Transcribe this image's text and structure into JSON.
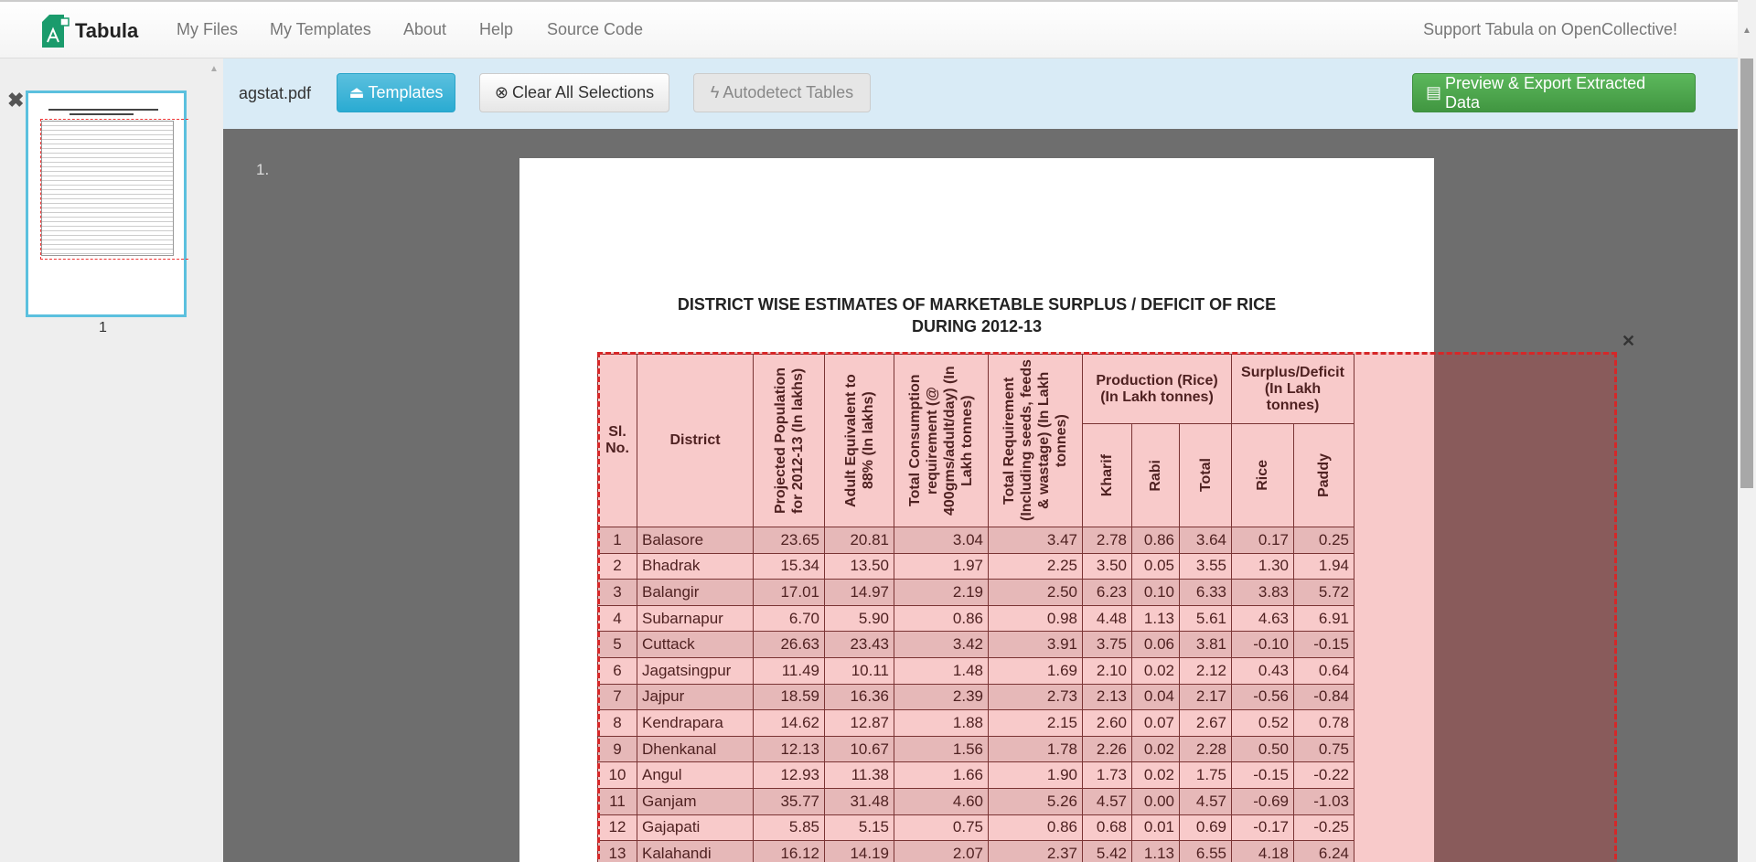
{
  "nav": {
    "brand": "Tabula",
    "links": [
      "My Files",
      "My Templates",
      "About",
      "Help",
      "Source Code"
    ],
    "support": "Support Tabula on OpenCollective!"
  },
  "sidebar": {
    "thumb_page": "1"
  },
  "toolbar": {
    "filename": "agstat.pdf",
    "templates": "Templates",
    "clear": "Clear All Selections",
    "autodetect": "Autodetect Tables",
    "export": "Preview & Export Extracted Data",
    "colors": {
      "templates": "#31b0d5",
      "export": "#47a447"
    }
  },
  "viewer": {
    "page_label": "1.",
    "title1": "DISTRICT WISE ESTIMATES OF MARKETABLE SURPLUS / DEFICIT OF RICE",
    "title2": "DURING 2012-13",
    "headers": {
      "slno": "Sl. No.",
      "district": "District",
      "pop": "Projected Population for 2012-13 (In lakhs)",
      "adult": "Adult Equivalent to 88% (In lakhs)",
      "cons": "Total Consumption requirement (@ 400gms/adult/day) (In Lakh tonnes)",
      "req": "Total Requirement (Including seeds, feeds & wastage) (In Lakh tonnes)",
      "prod": "Production (Rice) (In Lakh tonnes)",
      "surplus": "Surplus/Deficit (In Lakh tonnes)",
      "kharif": "Kharif",
      "rabi": "Rabi",
      "total": "Total",
      "rice": "Rice",
      "paddy": "Paddy"
    },
    "rows": [
      [
        "1",
        "Balasore",
        "23.65",
        "20.81",
        "3.04",
        "3.47",
        "2.78",
        "0.86",
        "3.64",
        "0.17",
        "0.25"
      ],
      [
        "2",
        "Bhadrak",
        "15.34",
        "13.50",
        "1.97",
        "2.25",
        "3.50",
        "0.05",
        "3.55",
        "1.30",
        "1.94"
      ],
      [
        "3",
        "Balangir",
        "17.01",
        "14.97",
        "2.19",
        "2.50",
        "6.23",
        "0.10",
        "6.33",
        "3.83",
        "5.72"
      ],
      [
        "4",
        "Subarnapur",
        "6.70",
        "5.90",
        "0.86",
        "0.98",
        "4.48",
        "1.13",
        "5.61",
        "4.63",
        "6.91"
      ],
      [
        "5",
        "Cuttack",
        "26.63",
        "23.43",
        "3.42",
        "3.91",
        "3.75",
        "0.06",
        "3.81",
        "-0.10",
        "-0.15"
      ],
      [
        "6",
        "Jagatsingpur",
        "11.49",
        "10.11",
        "1.48",
        "1.69",
        "2.10",
        "0.02",
        "2.12",
        "0.43",
        "0.64"
      ],
      [
        "7",
        "Jajpur",
        "18.59",
        "16.36",
        "2.39",
        "2.73",
        "2.13",
        "0.04",
        "2.17",
        "-0.56",
        "-0.84"
      ],
      [
        "8",
        "Kendrapara",
        "14.62",
        "12.87",
        "1.88",
        "2.15",
        "2.60",
        "0.07",
        "2.67",
        "0.52",
        "0.78"
      ],
      [
        "9",
        "Dhenkanal",
        "12.13",
        "10.67",
        "1.56",
        "1.78",
        "2.26",
        "0.02",
        "2.28",
        "0.50",
        "0.75"
      ],
      [
        "10",
        "Angul",
        "12.93",
        "11.38",
        "1.66",
        "1.90",
        "1.73",
        "0.02",
        "1.75",
        "-0.15",
        "-0.22"
      ],
      [
        "11",
        "Ganjam",
        "35.77",
        "31.48",
        "4.60",
        "5.26",
        "4.57",
        "0.00",
        "4.57",
        "-0.69",
        "-1.03"
      ],
      [
        "12",
        "Gajapati",
        "5.85",
        "5.15",
        "0.75",
        "0.86",
        "0.68",
        "0.01",
        "0.69",
        "-0.17",
        "-0.25"
      ],
      [
        "13",
        "Kalahandi",
        "16.12",
        "14.19",
        "2.07",
        "2.37",
        "5.42",
        "1.13",
        "6.55",
        "4.18",
        "6.24"
      ]
    ]
  }
}
